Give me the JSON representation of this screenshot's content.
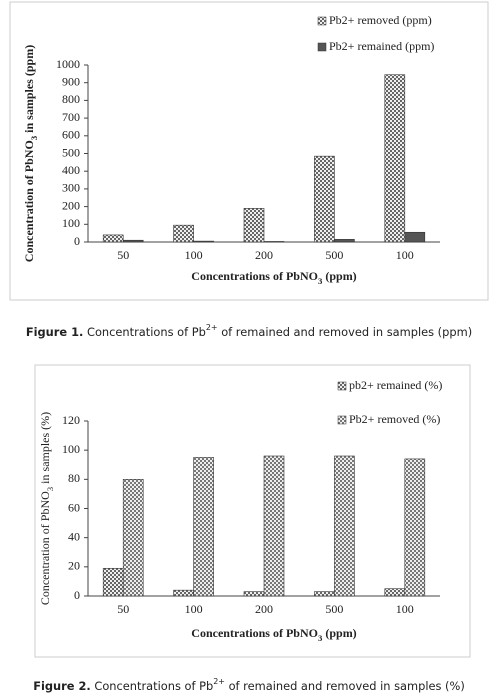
{
  "chart_data": [
    {
      "type": "bar",
      "ylabel": [
        "Concentration of PbNO",
        "3",
        " in samples (ppm)"
      ],
      "xlabel": [
        "Concentrations of PbNO",
        "3",
        " (ppm)"
      ],
      "categories": [
        "50",
        "100",
        "200",
        "500",
        "100"
      ],
      "series": [
        {
          "name": "Pb2+ removed (ppm)",
          "color": "#666666",
          "pattern": "checker",
          "values": [
            40,
            95,
            190,
            485,
            945
          ]
        },
        {
          "name": "Pb2+ remained (ppm)",
          "color": "#555555",
          "pattern": "solid",
          "values": [
            10,
            5,
            3,
            15,
            55
          ]
        }
      ],
      "ylim": [
        0,
        1000
      ],
      "yticks": [
        0,
        100,
        200,
        300,
        400,
        500,
        600,
        700,
        800,
        900,
        1000
      ],
      "caption": {
        "label": "Figure 1.",
        "text": [
          "Concentrations of Pb",
          "2+",
          " of remained and removed in samples (ppm)"
        ]
      }
    },
    {
      "type": "bar",
      "ylabel": [
        "Concentration of PbNO",
        "3",
        " in samples (%)"
      ],
      "xlabel": [
        "Concentrations of PbNO",
        "3",
        " (ppm)"
      ],
      "categories": [
        "50",
        "100",
        "200",
        "500",
        "100"
      ],
      "series": [
        {
          "name": "pb2+ remained (%)",
          "color": "#666666",
          "pattern": "checker",
          "values": [
            19,
            4,
            3,
            3,
            5
          ]
        },
        {
          "name": "Pb2+ removed (%)",
          "color": "#777777",
          "pattern": "checker",
          "values": [
            80,
            95,
            96,
            96,
            94
          ]
        }
      ],
      "ylim": [
        0,
        120
      ],
      "yticks": [
        0,
        20,
        40,
        60,
        80,
        100,
        120
      ],
      "caption": {
        "label": "Figure 2.",
        "text": [
          "Concentrations of Pb",
          "2+",
          " of remained and removed in samples (%)"
        ]
      }
    }
  ]
}
